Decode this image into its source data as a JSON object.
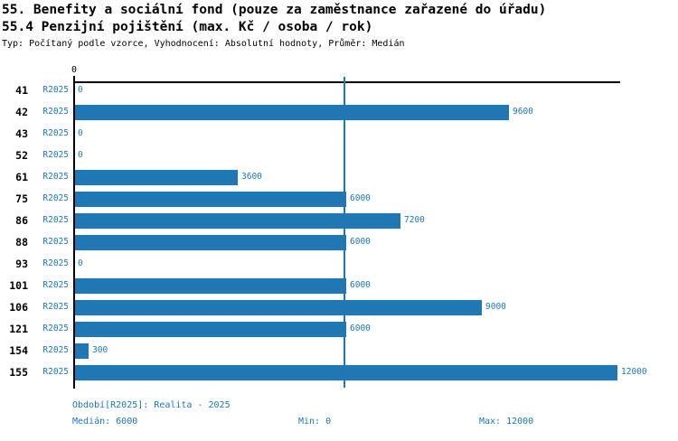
{
  "header": {
    "title_line1": "55. Benefity a sociální fond (pouze za zaměstnance zařazené do úřadu)",
    "title_line2": "55.4 Penzijní pojištění (max. Kč / osoba / rok)",
    "subtitle": "Typ: Počítaný podle vzorce, Vyhodnocení: Absolutní hodnoty, Průměr: Medián"
  },
  "chart_data": {
    "type": "bar",
    "orientation": "horizontal",
    "categories": [
      "41",
      "42",
      "43",
      "52",
      "61",
      "75",
      "86",
      "88",
      "93",
      "101",
      "106",
      "121",
      "154",
      "155"
    ],
    "series": [
      {
        "name": "R2025",
        "values": [
          0,
          9600,
          0,
          0,
          3600,
          6000,
          7200,
          6000,
          0,
          6000,
          9000,
          6000,
          300,
          12000
        ]
      }
    ],
    "value_labels": [
      "0",
      "9600",
      "0",
      "0",
      "3600",
      "6000",
      "7200",
      "6000",
      "0",
      "6000",
      "9000",
      "6000",
      "300",
      "12000"
    ],
    "xlim": [
      0,
      12000
    ],
    "x_tick_labels": [
      "0"
    ],
    "median_line_value": 6000,
    "grid": false,
    "bar_color": "#1f77b4",
    "label_color": "#1f77b4",
    "axis_color": "#000000"
  },
  "footer": {
    "period_label": "Období[R2025]: Realita - 2025",
    "median_label": "Medián: 6000",
    "min_label": "Min: 0",
    "max_label": "Max: 12000"
  },
  "colors": {
    "accent": "#1f77b4",
    "text": "#000000",
    "background": "#ffffff"
  }
}
